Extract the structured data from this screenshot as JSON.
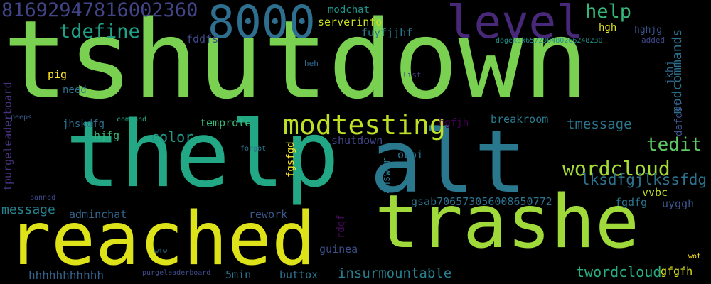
{
  "wordcloud": {
    "words": [
      {
        "id": "tshutdown",
        "text": "tshutdown",
        "color": "#7ad151"
      },
      {
        "id": "thelp",
        "text": "thelp",
        "color": "#22a884"
      },
      {
        "id": "alt",
        "text": "alt",
        "color": "#2a788e"
      },
      {
        "id": "reached",
        "text": "reached",
        "color": "#dde318"
      },
      {
        "id": "trashe",
        "text": "trashe",
        "color": "#9fda3a"
      },
      {
        "id": "level",
        "text": "level",
        "color": "#482878"
      },
      {
        "id": "8000",
        "text": "8000",
        "color": "#2e6e8e"
      },
      {
        "id": "num-8169",
        "text": "81692947816002360",
        "color": "#414487"
      },
      {
        "id": "modtesting",
        "text": "modtesting",
        "color": "#bddf26"
      },
      {
        "id": "tdefine",
        "text": "tdefine",
        "color": "#1fa187"
      },
      {
        "id": "help",
        "text": "help",
        "color": "#35b779"
      },
      {
        "id": "wordcloud",
        "text": "wordcloud",
        "color": "#a5db36"
      },
      {
        "id": "tedit",
        "text": "tedit",
        "color": "#5ec962"
      },
      {
        "id": "lksdf",
        "text": "lksdfgjlkssfdg",
        "color": "#2c728e"
      },
      {
        "id": "message",
        "text": "message",
        "color": "#27808e"
      },
      {
        "id": "color",
        "text": "color",
        "color": "#1f9a8a"
      },
      {
        "id": "tmessage",
        "text": "tmessage",
        "color": "#2a768e"
      },
      {
        "id": "twordcloud",
        "text": "twordcloud",
        "color": "#27ad81"
      },
      {
        "id": "insurmountable",
        "text": "insurmountable",
        "color": "#277f8e"
      },
      {
        "id": "hhhh",
        "text": "hhhhhhhhhhh",
        "color": "#33638d"
      },
      {
        "id": "modcommands",
        "text": "modcommands",
        "color": "#2d708e"
      },
      {
        "id": "modchat",
        "text": "modchat",
        "color": "#1f948c"
      },
      {
        "id": "serverinfo",
        "text": "serverinfo",
        "color": "#c8e020"
      },
      {
        "id": "fuyfjjhf",
        "text": "fuyfjjhf",
        "color": "#297b8e"
      },
      {
        "id": "hgh",
        "text": "hgh",
        "color": "#e5e419"
      },
      {
        "id": "hghjg",
        "text": "hghjg",
        "color": "#3b528b"
      },
      {
        "id": "fddfs",
        "text": "fddfs",
        "color": "#3e4989"
      },
      {
        "id": "dogekek",
        "text": "dogekek657290480266248230",
        "color": "#21918c"
      },
      {
        "id": "added",
        "text": "added",
        "color": "#3f4788"
      },
      {
        "id": "pig",
        "text": "pig",
        "color": "#fde725"
      },
      {
        "id": "need",
        "text": "need",
        "color": "#2c728e"
      },
      {
        "id": "heh",
        "text": "heh",
        "color": "#31688e"
      },
      {
        "id": "list",
        "text": "list",
        "color": "#443983"
      },
      {
        "id": "jkhj",
        "text": "jkhj",
        "color": "#31688e"
      },
      {
        "id": "tpurge",
        "text": "tpurgeleaderboard",
        "color": "#46327e"
      },
      {
        "id": "peeps",
        "text": "peeps",
        "color": "#375b8d"
      },
      {
        "id": "command",
        "text": "command",
        "color": "#22a884"
      },
      {
        "id": "temprole",
        "text": "temprole",
        "color": "#3aba76"
      },
      {
        "id": "jhskdfg",
        "text": "jhskdfg",
        "color": "#2d708e"
      },
      {
        "id": "hgfjh",
        "text": "hgfjh",
        "color": "#440154"
      },
      {
        "id": "breakroom",
        "text": "breakroom",
        "color": "#287c8e"
      },
      {
        "id": "dafdsf",
        "text": "dafdsf",
        "color": "#3b528b"
      },
      {
        "id": "hjfg",
        "text": "hjfg",
        "color": "#35b779"
      },
      {
        "id": "shutdown",
        "text": "shutdown",
        "color": "#404688"
      },
      {
        "id": "forgot",
        "text": "forgot",
        "color": "#2a788e"
      },
      {
        "id": "fgsfgd",
        "text": "fgsfgd",
        "color": "#fde725"
      },
      {
        "id": "oboi",
        "text": "oboi",
        "color": "#2c728e"
      },
      {
        "id": "answer",
        "text": "answer",
        "color": "#2a778e"
      },
      {
        "id": "gsab",
        "text": "gsab706573056008650772",
        "color": "#2c728e"
      },
      {
        "id": "fgdfg",
        "text": "fgdfg",
        "color": "#2b758e"
      },
      {
        "id": "vvbc",
        "text": "vvbc",
        "color": "#c0df25"
      },
      {
        "id": "uygggh",
        "text": "uyggh",
        "color": "#3a548c"
      },
      {
        "id": "banned",
        "text": "banned",
        "color": "#3e4a89"
      },
      {
        "id": "adminchat",
        "text": "adminchat",
        "color": "#31678e"
      },
      {
        "id": "rework",
        "text": "rework",
        "color": "#38588c"
      },
      {
        "id": "rdgf",
        "text": "rdgf",
        "color": "#460a5d"
      },
      {
        "id": "guinea",
        "text": "guinea",
        "color": "#3c4f8a"
      },
      {
        "id": "wiw",
        "text": "wiw",
        "color": "#2a778e"
      },
      {
        "id": "purgeleaderboard",
        "text": "purgeleaderboard",
        "color": "#3e4a89"
      },
      {
        "id": "5min",
        "text": "5min",
        "color": "#2c728e"
      },
      {
        "id": "buttox",
        "text": "buttox",
        "color": "#2d708e"
      },
      {
        "id": "gfgfh",
        "text": "gfgfh",
        "color": "#d8e219"
      },
      {
        "id": "wot",
        "text": "wot",
        "color": "#fde725"
      }
    ]
  }
}
